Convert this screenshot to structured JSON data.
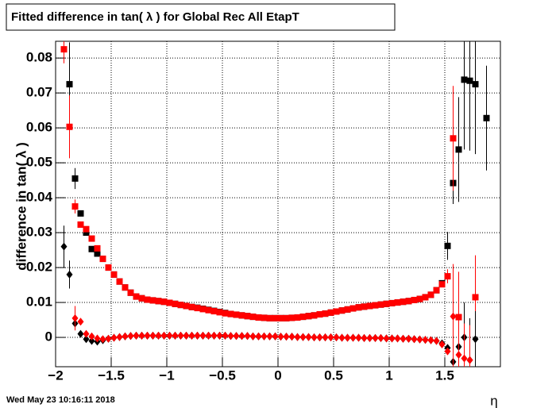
{
  "chart_data": {
    "type": "scatter",
    "title": "Fitted difference in tan( λ ) for Global Rec All EtapT",
    "y_label": "difference in tan( λ )",
    "x_label": "η",
    "footer": "Wed May 23 10:16:11 2018",
    "grid": true,
    "xlim": [
      -2,
      2
    ],
    "ylim": [
      -0.0084,
      0.0848
    ],
    "xticks": [
      {
        "value": -2,
        "label": "−2"
      },
      {
        "value": -1.5,
        "label": "−1.5"
      },
      {
        "value": -1,
        "label": "−1"
      },
      {
        "value": -0.5,
        "label": "−0.5"
      },
      0,
      0.5,
      1,
      1.5
    ],
    "yticks": [
      0,
      0.01,
      0.02,
      0.03,
      0.04,
      0.05,
      0.06,
      0.07,
      0.08
    ],
    "x": [
      -1.925,
      -1.875,
      -1.825,
      -1.775,
      -1.725,
      -1.675,
      -1.625,
      -1.575,
      -1.525,
      -1.475,
      -1.425,
      -1.375,
      -1.325,
      -1.275,
      -1.225,
      -1.175,
      -1.125,
      -1.075,
      -1.025,
      -0.975,
      -0.925,
      -0.875,
      -0.825,
      -0.775,
      -0.725,
      -0.675,
      -0.625,
      -0.575,
      -0.525,
      -0.475,
      -0.425,
      -0.375,
      -0.325,
      -0.275,
      -0.225,
      -0.175,
      -0.125,
      -0.075,
      -0.025,
      0.025,
      0.075,
      0.125,
      0.175,
      0.225,
      0.275,
      0.325,
      0.375,
      0.425,
      0.475,
      0.525,
      0.575,
      0.625,
      0.675,
      0.725,
      0.775,
      0.825,
      0.875,
      0.925,
      0.975,
      1.025,
      1.075,
      1.125,
      1.175,
      1.225,
      1.275,
      1.325,
      1.375,
      1.425,
      1.475,
      1.525,
      1.575,
      1.625,
      1.675,
      1.725,
      1.775,
      1.825,
      1.875
    ],
    "series": [
      {
        "marker": "square",
        "color": "#000000",
        "values": [
          null,
          0.0725,
          0.0455,
          0.0355,
          0.03,
          0.0253,
          0.024,
          0.0225,
          0.02,
          0.018,
          0.016,
          0.0143,
          0.0128,
          0.0117,
          0.0112,
          0.0108,
          0.0106,
          0.0104,
          0.0102,
          0.0099,
          0.0096,
          0.0093,
          0.009,
          0.0087,
          0.0085,
          0.0082,
          0.0079,
          0.0076,
          0.0073,
          0.007,
          0.0067,
          0.0065,
          0.0063,
          0.0061,
          0.0059,
          0.0057,
          0.0056,
          0.0055,
          0.0055,
          0.0055,
          0.0055,
          0.0056,
          0.0057,
          0.0059,
          0.0061,
          0.0063,
          0.0066,
          0.0068,
          0.0071,
          0.0074,
          0.0077,
          0.008,
          0.0083,
          0.0086,
          0.0088,
          0.009,
          0.0092,
          0.0094,
          0.0096,
          0.0098,
          0.01,
          0.0102,
          0.0104,
          0.0107,
          0.011,
          0.0115,
          0.0122,
          0.0135,
          0.0155,
          0.0262,
          0.0442,
          0.0538,
          0.0738,
          0.0735,
          0.0725,
          null,
          0.0628
        ],
        "errors": [
          null,
          0.012,
          0.003,
          null,
          null,
          null,
          null,
          null,
          null,
          null,
          null,
          null,
          null,
          null,
          null,
          null,
          null,
          null,
          null,
          null,
          null,
          null,
          null,
          null,
          null,
          null,
          null,
          null,
          null,
          null,
          null,
          null,
          null,
          null,
          null,
          null,
          null,
          null,
          null,
          null,
          null,
          null,
          null,
          null,
          null,
          null,
          null,
          null,
          null,
          null,
          null,
          null,
          null,
          null,
          null,
          null,
          null,
          null,
          null,
          null,
          null,
          null,
          null,
          null,
          null,
          null,
          null,
          null,
          null,
          0.004,
          0.006,
          0.015,
          0.02,
          0.02,
          0.02,
          null,
          0.015
        ]
      },
      {
        "marker": "square",
        "color": "#ff0000",
        "values": [
          0.0825,
          0.0603,
          0.0375,
          0.0323,
          0.031,
          0.0283,
          0.0255,
          0.0225,
          0.02,
          0.018,
          0.016,
          0.0143,
          0.0128,
          0.0117,
          0.0112,
          0.0108,
          0.0106,
          0.0104,
          0.0102,
          0.0099,
          0.0096,
          0.0093,
          0.009,
          0.0087,
          0.0084,
          0.0081,
          0.0078,
          0.0075,
          0.0072,
          0.0069,
          0.0067,
          0.0065,
          0.0063,
          0.0061,
          0.0059,
          0.0057,
          0.0056,
          0.0055,
          0.0055,
          0.0055,
          0.0055,
          0.0056,
          0.0057,
          0.0059,
          0.0061,
          0.0063,
          0.0066,
          0.0068,
          0.0071,
          0.0074,
          0.0077,
          0.008,
          0.0083,
          0.0086,
          0.0088,
          0.009,
          0.0092,
          0.0094,
          0.0096,
          0.0098,
          0.01,
          0.0102,
          0.0104,
          0.0107,
          0.011,
          0.0115,
          0.0122,
          0.0135,
          0.0152,
          0.0175,
          0.057,
          0.0058,
          null,
          null,
          0.0115,
          null,
          null
        ],
        "errors": [
          0.004,
          0.009,
          0.002,
          null,
          null,
          null,
          null,
          null,
          null,
          null,
          null,
          null,
          null,
          null,
          null,
          null,
          null,
          null,
          null,
          null,
          null,
          null,
          null,
          null,
          null,
          null,
          null,
          null,
          null,
          null,
          null,
          null,
          null,
          null,
          null,
          null,
          null,
          null,
          null,
          null,
          null,
          null,
          null,
          null,
          null,
          null,
          null,
          null,
          null,
          null,
          null,
          null,
          null,
          null,
          null,
          null,
          null,
          null,
          null,
          null,
          null,
          null,
          null,
          null,
          null,
          null,
          null,
          null,
          null,
          0.002,
          0.015,
          0.013,
          null,
          null,
          0.012,
          null,
          null
        ]
      },
      {
        "marker": "diamond",
        "color": "#000000",
        "values": [
          0.026,
          0.018,
          0.004,
          0.001,
          -0.0005,
          -0.001,
          -0.0012,
          -0.0008,
          -0.0004,
          -0.0001,
          0.0001,
          0.0003,
          0.0004,
          0.0005,
          0.0005,
          0.0005,
          0.0005,
          0.0005,
          0.0005,
          0.0005,
          0.0005,
          0.0005,
          0.0005,
          0.0005,
          0.0005,
          0.0005,
          0.0005,
          0.0005,
          0.0005,
          0.0005,
          0.0004,
          0.0004,
          0.0004,
          0.0004,
          0.0003,
          0.0003,
          0.0003,
          0.0003,
          0.0003,
          0.0002,
          0.0002,
          0.0002,
          0.0001,
          0.0001,
          0.0001,
          0,
          0,
          0,
          0,
          0,
          -0.0001,
          -0.0001,
          -0.0001,
          -0.0001,
          -0.0002,
          -0.0002,
          -0.0002,
          -0.0002,
          -0.0003,
          -0.0003,
          -0.0003,
          -0.0004,
          -0.0004,
          -0.0005,
          -0.0006,
          -0.0007,
          -0.0008,
          -0.001,
          -0.0017,
          -0.003,
          -0.007,
          -0.0027,
          0,
          -0.0065,
          -0.0005,
          null,
          null
        ],
        "errors": [
          0.006,
          0.004,
          null,
          null,
          null,
          null,
          null,
          null,
          null,
          null,
          null,
          null,
          null,
          null,
          null,
          null,
          null,
          null,
          null,
          null,
          null,
          null,
          null,
          null,
          null,
          null,
          null,
          null,
          null,
          null,
          null,
          null,
          null,
          null,
          null,
          null,
          null,
          null,
          null,
          null,
          null,
          null,
          null,
          null,
          null,
          null,
          null,
          null,
          null,
          null,
          null,
          null,
          null,
          null,
          null,
          null,
          null,
          null,
          null,
          null,
          null,
          null,
          null,
          null,
          null,
          null,
          null,
          null,
          null,
          null,
          0.003,
          null,
          0.01,
          0.012,
          0.008,
          null,
          null
        ]
      },
      {
        "marker": "diamond",
        "color": "#ff0000",
        "values": [
          null,
          null,
          0.0055,
          0.0045,
          0.001,
          0.0003,
          -0.0003,
          -0.0005,
          -0.0004,
          -0.0001,
          0.0001,
          0.0003,
          0.0004,
          0.0005,
          0.0005,
          0.0005,
          0.0005,
          0.0005,
          0.0005,
          0.0005,
          0.0005,
          0.0005,
          0.0005,
          0.0005,
          0.0005,
          0.0005,
          0.0005,
          0.0005,
          0.0005,
          0.0005,
          0.0004,
          0.0004,
          0.0004,
          0.0004,
          0.0003,
          0.0003,
          0.0003,
          0.0003,
          0.0003,
          0.0002,
          0.0002,
          0.0002,
          0.0001,
          0.0001,
          0.0001,
          0,
          0,
          0,
          0,
          0,
          -0.0001,
          -0.0001,
          -0.0001,
          -0.0001,
          -0.0002,
          -0.0002,
          -0.0002,
          -0.0002,
          -0.0003,
          -0.0003,
          -0.0003,
          -0.0004,
          -0.0004,
          -0.0005,
          -0.0006,
          -0.0007,
          -0.0008,
          -0.001,
          -0.002,
          -0.004,
          0.006,
          -0.005,
          -0.006,
          -0.0065,
          null,
          null,
          null
        ],
        "errors": [
          null,
          null,
          0.0035,
          null,
          null,
          null,
          null,
          null,
          null,
          null,
          null,
          null,
          null,
          null,
          null,
          null,
          null,
          null,
          null,
          null,
          null,
          null,
          null,
          null,
          null,
          null,
          null,
          null,
          null,
          null,
          null,
          null,
          null,
          null,
          null,
          null,
          null,
          null,
          null,
          null,
          null,
          null,
          null,
          null,
          null,
          null,
          null,
          null,
          null,
          null,
          null,
          null,
          null,
          null,
          null,
          null,
          null,
          null,
          null,
          null,
          null,
          null,
          null,
          null,
          null,
          null,
          null,
          null,
          null,
          null,
          0.015,
          0.008,
          0.01,
          0.01,
          null,
          null,
          null
        ]
      }
    ]
  }
}
